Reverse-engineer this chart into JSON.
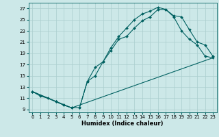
{
  "title": "",
  "xlabel": "Humidex (Indice chaleur)",
  "bg_color": "#cce8e8",
  "grid_color": "#aacece",
  "line_color": "#006060",
  "xlim": [
    -0.5,
    23.5
  ],
  "ylim": [
    8.5,
    28.0
  ],
  "xticks": [
    0,
    1,
    2,
    3,
    4,
    5,
    6,
    7,
    8,
    9,
    10,
    11,
    12,
    13,
    14,
    15,
    16,
    17,
    18,
    19,
    20,
    21,
    22,
    23
  ],
  "yticks": [
    9,
    11,
    13,
    15,
    17,
    19,
    21,
    23,
    25,
    27
  ],
  "line1_x": [
    0,
    1,
    2,
    3,
    4,
    5,
    6,
    7,
    8,
    9,
    10,
    11,
    12,
    13,
    14,
    15,
    16,
    17,
    18,
    19,
    20,
    21,
    22,
    23
  ],
  "line1_y": [
    12.2,
    11.4,
    11.0,
    10.4,
    9.8,
    9.3,
    9.3,
    14.0,
    16.5,
    17.5,
    19.5,
    21.5,
    22.0,
    23.5,
    24.8,
    25.5,
    26.8,
    26.8,
    25.5,
    23.0,
    21.5,
    20.5,
    18.5,
    18.2
  ],
  "line2_x": [
    0,
    3,
    4,
    5,
    6,
    7,
    8,
    9,
    10,
    11,
    12,
    13,
    14,
    15,
    16,
    17,
    18,
    19,
    20,
    21,
    22,
    23
  ],
  "line2_y": [
    12.2,
    10.4,
    9.8,
    9.3,
    9.3,
    14.0,
    15.0,
    17.5,
    20.0,
    22.0,
    23.5,
    25.0,
    26.0,
    26.5,
    27.2,
    26.8,
    25.7,
    25.5,
    23.2,
    21.0,
    20.5,
    18.5
  ],
  "line3_x": [
    0,
    5,
    23
  ],
  "line3_y": [
    12.2,
    9.3,
    18.2
  ],
  "marker": "D",
  "markersize": 2.0,
  "linewidth": 0.8,
  "tick_fontsize": 5.0,
  "xlabel_fontsize": 6.0
}
